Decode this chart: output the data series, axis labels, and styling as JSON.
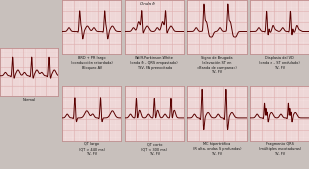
{
  "bg_color": "#f2dede",
  "grid_color": "#e0b0b0",
  "line_color": "#5a0000",
  "border_color": "#c09090",
  "overall_bg": "#c8c0bc",
  "panels_row0": [
    {
      "label": "Normal",
      "col": 0,
      "ecg_type": "normal",
      "sublabel": "",
      "small": true
    },
    {
      "label": "BRD + PR largo\n(conducción retardada)\nBloqueo AV",
      "col": 1,
      "ecg_type": "brd",
      "sublabel": ""
    },
    {
      "label": "Wolff-Parkinson-White\n(onda δ – QRS empastado)\nTSV, FA preexcitada",
      "col": 2,
      "ecg_type": "wpw",
      "sublabel": "Onda δ"
    },
    {
      "label": "Signo de Brugada\n(elevación ST en\n«Banda de campana»)\nTV, FV",
      "col": 3,
      "ecg_type": "brugada",
      "sublabel": ""
    },
    {
      "label": "Displasia del VD\n(onda ε – ST ondulado)\nTV, FV",
      "col": 4,
      "ecg_type": "arvd",
      "sublabel": ""
    }
  ],
  "panels_row1": [
    {
      "label": "QT largo\n(QT > 440 ms)\nTV, FV",
      "col": 1,
      "ecg_type": "qt_long",
      "sublabel": ""
    },
    {
      "label": "QT corto\n(QT < 300 ms)\nTV, FV",
      "col": 2,
      "ecg_type": "qt_short",
      "sublabel": ""
    },
    {
      "label": "MC hipertrófica\n(R alta, ondas S profundas)\nTV, FV",
      "col": 3,
      "ecg_type": "hcm",
      "sublabel": ""
    },
    {
      "label": "Fragmento QRS\n(múltiples escotaduras)\nTV, FV",
      "col": 4,
      "ecg_type": "frag",
      "sublabel": ""
    }
  ]
}
